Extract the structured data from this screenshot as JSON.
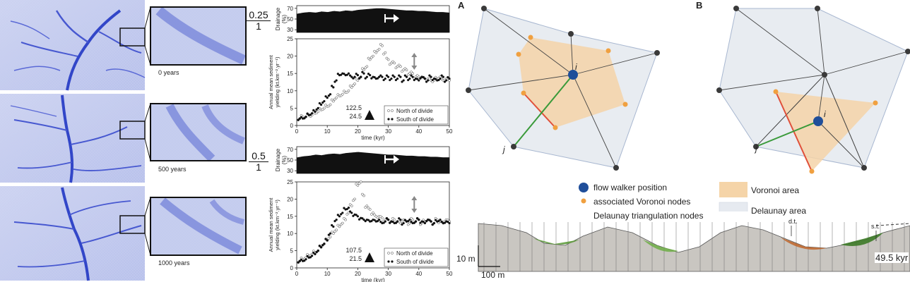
{
  "figure": {
    "year_labels": [
      "0 years",
      "500 years",
      "1000 years"
    ],
    "ratios": [
      {
        "numerator": "0.25",
        "denominator": "1"
      },
      {
        "numerator": "0.5",
        "denominator": "1"
      }
    ],
    "panel_letters": [
      "A",
      "B"
    ],
    "node_labels": {
      "i": "i",
      "j": "j"
    },
    "legend": {
      "flow_walker": "flow walker position",
      "voronoi_nodes": "associated Voronoi nodes",
      "delaunay_nodes": "Delaunay triangulation nodes",
      "voronoi_area": "Voronoi area",
      "delaunay_area": "Delaunay area"
    },
    "colors": {
      "flow_walker": "#1f4e9a",
      "voronoi_node": "#f0a040",
      "delaunay_node": "#3a3a3a",
      "voronoi_area": "#f5d4a8",
      "delaunay_area": "#e6eaf0",
      "red_edge": "#e0503a",
      "green_edge": "#3a9a3a"
    },
    "cross_section": {
      "scale_vertical": "10 m",
      "scale_horizontal": "100 m",
      "time_label": "49.5 kyr",
      "annotation_dt": "d.t.",
      "annotation_st": "s.t."
    }
  },
  "chart_data": [
    {
      "type": "bar",
      "ylabel": "Drainage\n(%)",
      "yticks": [
        30,
        50,
        70
      ],
      "ylim": [
        25,
        75
      ],
      "x": [
        0,
        2,
        4,
        6,
        8,
        10,
        12,
        14,
        16,
        18,
        20,
        22,
        24,
        26,
        28,
        30,
        32,
        34,
        36,
        38,
        40,
        42,
        44,
        46,
        48,
        50
      ],
      "values": [
        60,
        62,
        63,
        62,
        64,
        63,
        65,
        64,
        66,
        65,
        67,
        68,
        69,
        70,
        70,
        69,
        68,
        67,
        66,
        66,
        65,
        65,
        64,
        63,
        63,
        62
      ]
    },
    {
      "type": "scatter",
      "ylabel": "Annual mean sediment\nyielding (kt.km⁻².yr⁻¹)",
      "xlabel": "time (kyr)",
      "xticks": [
        0,
        10,
        20,
        30,
        40,
        50
      ],
      "yticks": [
        0,
        5,
        10,
        15,
        20,
        25
      ],
      "xlim": [
        0,
        50
      ],
      "ylim": [
        0,
        25
      ],
      "marker_labels": [
        "122.5",
        "24.5"
      ],
      "legend": [
        "North of divide",
        "South of divide"
      ],
      "series": [
        {
          "name": "North of divide",
          "x": [
            1,
            2,
            3,
            4,
            5,
            6,
            7,
            8,
            9,
            10,
            11,
            12,
            13,
            14,
            15,
            16,
            17,
            18,
            19,
            20,
            21,
            22,
            23,
            24,
            25,
            26,
            27,
            28,
            29,
            30,
            31,
            32,
            33,
            34,
            35,
            36,
            37,
            38,
            39,
            40,
            41,
            42,
            43,
            44,
            45,
            46,
            47,
            48,
            49,
            50
          ],
          "y": [
            2,
            2.5,
            2.5,
            3,
            3,
            3.5,
            4,
            4.5,
            5,
            5.5,
            6,
            7,
            8,
            8.5,
            9,
            9.5,
            10,
            11,
            12,
            13,
            14,
            16,
            17,
            19,
            20,
            21,
            22,
            23,
            21,
            19,
            18,
            18,
            17,
            17,
            16,
            16,
            15,
            15,
            14,
            14,
            14,
            13.5,
            13.5,
            13,
            13,
            13.5,
            14,
            13,
            13.5,
            13
          ]
        },
        {
          "name": "South of divide",
          "x": [
            1,
            2,
            3,
            4,
            5,
            6,
            7,
            8,
            9,
            10,
            11,
            12,
            13,
            14,
            15,
            16,
            17,
            18,
            19,
            20,
            21,
            22,
            23,
            24,
            25,
            26,
            27,
            28,
            29,
            30,
            31,
            32,
            33,
            34,
            35,
            36,
            37,
            38,
            39,
            40,
            41,
            42,
            43,
            44,
            45,
            46,
            47,
            48,
            49,
            50
          ],
          "y": [
            2,
            2,
            2.5,
            3,
            3.5,
            4,
            5,
            6,
            7,
            8,
            9,
            11,
            13,
            14.5,
            15,
            14.5,
            15,
            14,
            14,
            14.5,
            14,
            15,
            14,
            14.5,
            14,
            13.5,
            14,
            14,
            13.5,
            14,
            13.5,
            14,
            13.5,
            14,
            13,
            14,
            13.5,
            14,
            13.5,
            13,
            14,
            13.5,
            13,
            14,
            13.5,
            13,
            13.5,
            14,
            13,
            13.5
          ]
        }
      ]
    },
    {
      "type": "bar",
      "ylabel": "Drainage\n(%)",
      "yticks": [
        30,
        50,
        70
      ],
      "ylim": [
        25,
        75
      ],
      "x": [
        0,
        2,
        4,
        6,
        8,
        10,
        12,
        14,
        16,
        18,
        20,
        22,
        24,
        26,
        28,
        30,
        32,
        34,
        36,
        38,
        40,
        42,
        44,
        46,
        48,
        50
      ],
      "values": [
        55,
        57,
        58,
        60,
        59,
        61,
        62,
        61,
        63,
        64,
        65,
        64,
        63,
        62,
        61,
        60,
        60,
        59,
        58,
        58,
        57,
        57,
        56,
        56,
        55,
        55
      ]
    },
    {
      "type": "scatter",
      "ylabel": "Annual mean sediment\nyielding (kt.km⁻².yr⁻¹)",
      "xlabel": "time (kyr)",
      "xticks": [
        0,
        10,
        20,
        30,
        40,
        50
      ],
      "yticks": [
        0,
        5,
        10,
        15,
        20,
        25
      ],
      "xlim": [
        0,
        50
      ],
      "ylim": [
        0,
        25
      ],
      "marker_labels": [
        "107.5",
        "21.5"
      ],
      "legend": [
        "North of divide",
        "South of divide"
      ],
      "series": [
        {
          "name": "North of divide",
          "x": [
            1,
            2,
            3,
            4,
            5,
            6,
            7,
            8,
            9,
            10,
            11,
            12,
            13,
            14,
            15,
            16,
            17,
            18,
            19,
            20,
            21,
            22,
            23,
            24,
            25,
            26,
            27,
            28,
            29,
            30,
            31,
            32,
            33,
            34,
            35,
            36,
            37,
            38,
            39,
            40,
            41,
            42,
            43,
            44,
            45,
            46,
            47,
            48,
            49,
            50
          ],
          "y": [
            2,
            2.5,
            3,
            3.5,
            4,
            4.5,
            5,
            6,
            7,
            8,
            9,
            10,
            11,
            12,
            13,
            14,
            16,
            18,
            20,
            24,
            25,
            21,
            18,
            17,
            16,
            15,
            15,
            14.5,
            14,
            14,
            13.5,
            14,
            13.5,
            13,
            14,
            13.5,
            13,
            14,
            13.5,
            14,
            13,
            13.5,
            14,
            13.5,
            13,
            14,
            13.5,
            13,
            14,
            13.5
          ]
        },
        {
          "name": "South of divide",
          "x": [
            1,
            2,
            3,
            4,
            5,
            6,
            7,
            8,
            9,
            10,
            11,
            12,
            13,
            14,
            15,
            16,
            17,
            18,
            19,
            20,
            21,
            22,
            23,
            24,
            25,
            26,
            27,
            28,
            29,
            30,
            31,
            32,
            33,
            34,
            35,
            36,
            37,
            38,
            39,
            40,
            41,
            42,
            43,
            44,
            45,
            46,
            47,
            48,
            49,
            50
          ],
          "y": [
            2,
            2,
            2.5,
            3,
            3.5,
            4,
            5,
            6,
            7,
            8,
            10,
            12,
            14,
            15,
            16,
            17,
            17.5,
            16,
            15.5,
            15,
            14.5,
            14,
            14,
            13.5,
            14,
            13.5,
            14,
            13,
            13.5,
            14,
            13.5,
            13,
            13.5,
            14,
            13,
            13.5,
            14,
            13,
            13.5,
            14,
            13.5,
            13,
            14,
            13.5,
            13,
            13.5,
            14,
            13,
            13.5,
            13
          ]
        }
      ]
    }
  ]
}
